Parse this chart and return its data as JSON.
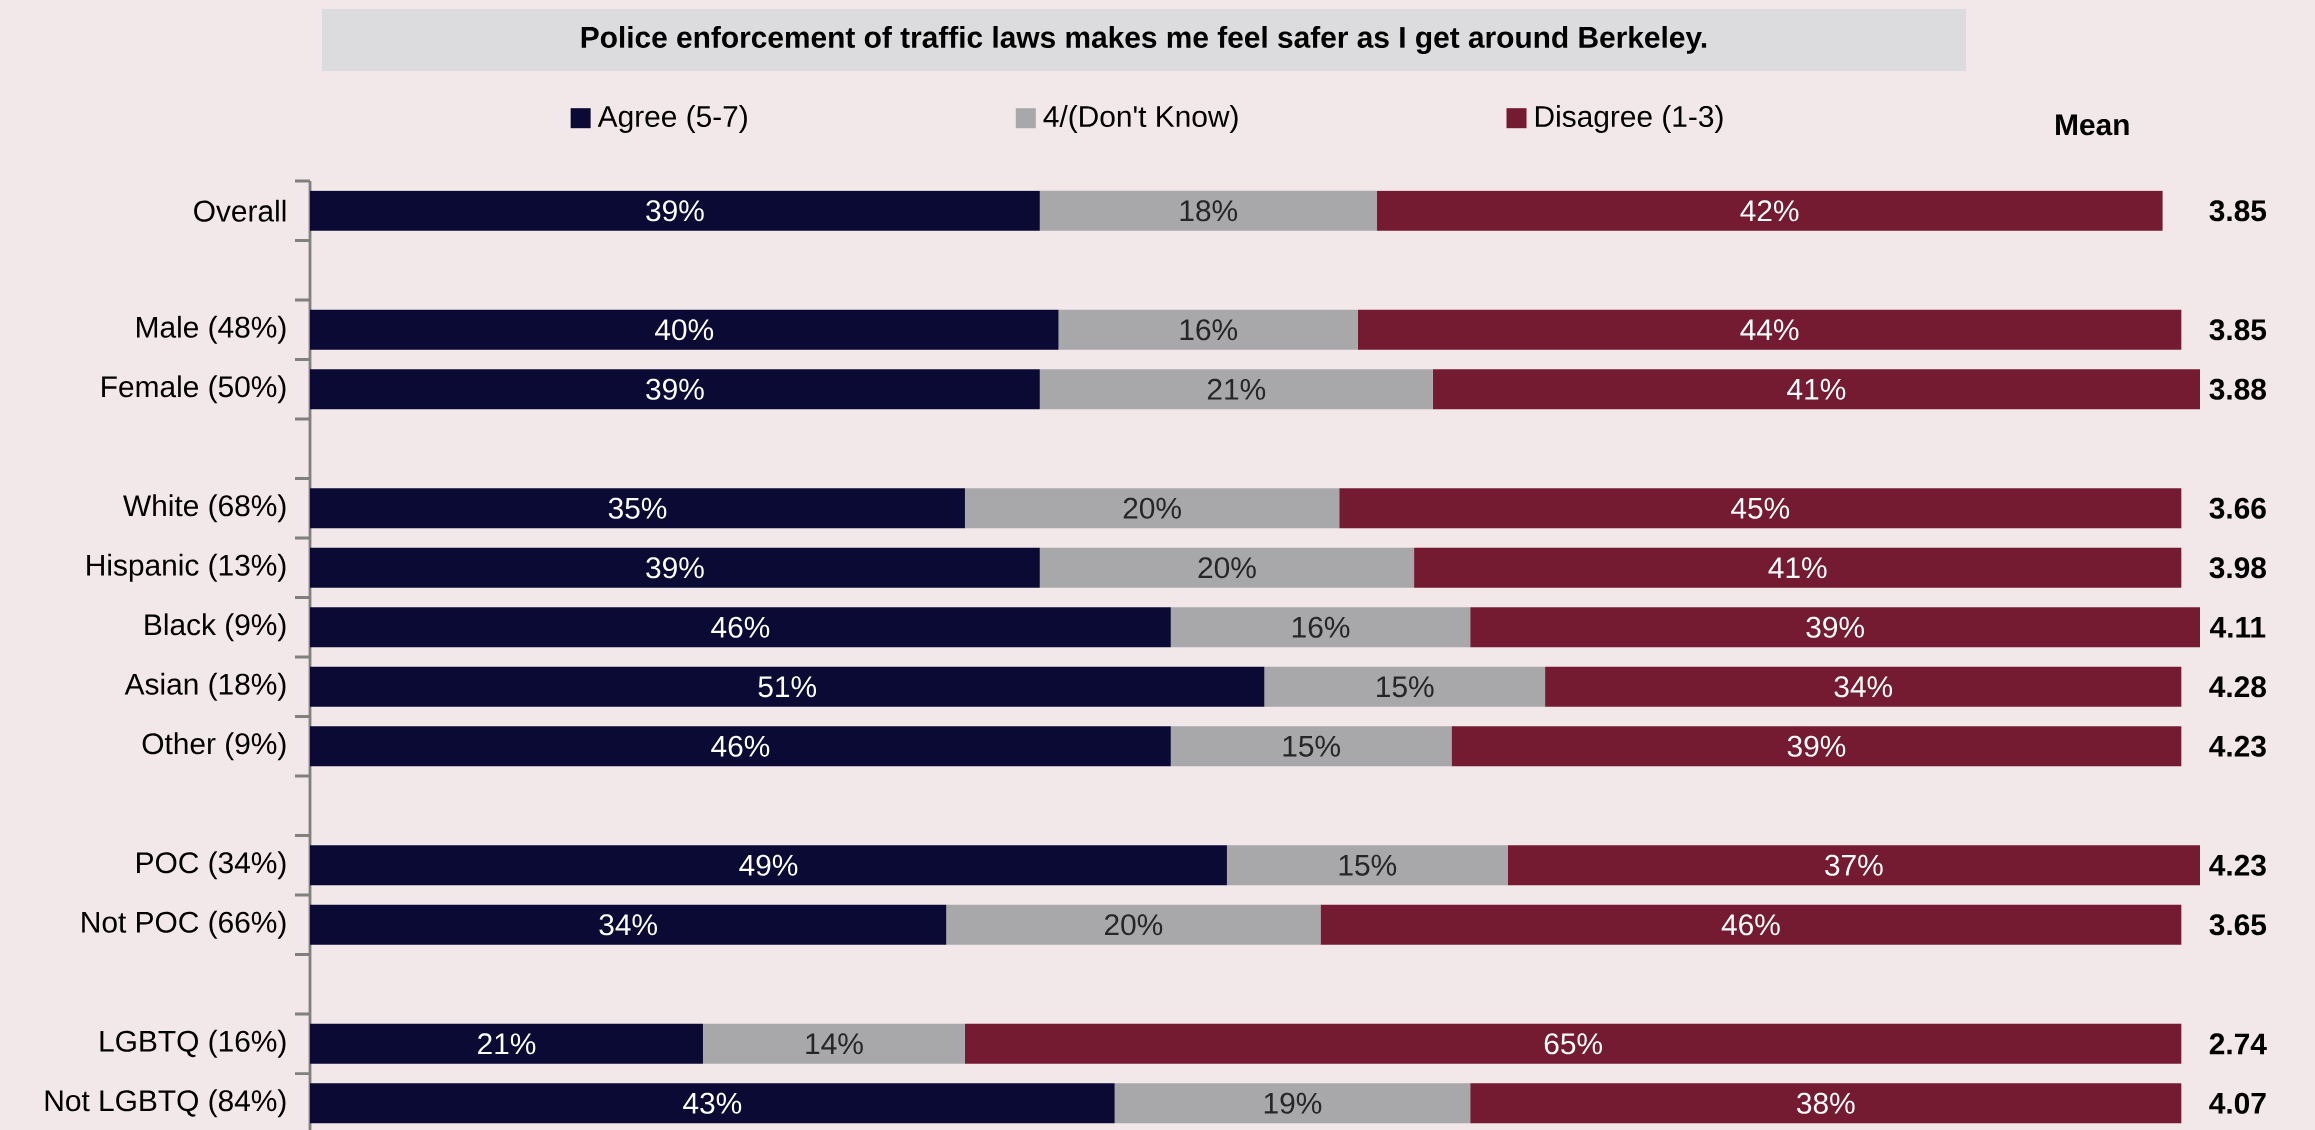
{
  "chart_data": {
    "type": "bar",
    "orientation": "horizontal",
    "stacked": true,
    "title": "Police enforcement of traffic laws makes me feel safer as I get around Berkeley.",
    "categories": [
      "Overall",
      null,
      "Male (48%)",
      "Female (50%)",
      null,
      "White (68%)",
      "Hispanic (13%)",
      "Black (9%)",
      "Asian (18%)",
      "Other (9%)",
      null,
      "POC (34%)",
      "Not POC (66%)",
      null,
      "LGBTQ (16%)",
      "Not LGBTQ (84%)"
    ],
    "series": [
      {
        "name": "Agree (5-7)",
        "color": "#0b0a35",
        "values": [
          39,
          null,
          40,
          39,
          null,
          35,
          39,
          46,
          51,
          46,
          null,
          49,
          34,
          null,
          21,
          43
        ],
        "value_labels": [
          "39%",
          null,
          "40%",
          "39%",
          null,
          "35%",
          "39%",
          "46%",
          "51%",
          "46%",
          null,
          "49%",
          "34%",
          null,
          "21%",
          "43%"
        ]
      },
      {
        "name": "4/(Don't Know)",
        "color": "#a8a8ab",
        "values": [
          18,
          null,
          16,
          21,
          null,
          20,
          20,
          16,
          15,
          15,
          null,
          15,
          20,
          null,
          14,
          19
        ],
        "value_labels": [
          "18%",
          null,
          "16%",
          "21%",
          null,
          "20%",
          "20%",
          "16%",
          "15%",
          "15%",
          null,
          "15%",
          "20%",
          null,
          "14%",
          "19%"
        ]
      },
      {
        "name": "Disagree (1-3)",
        "color": "#741b32",
        "values": [
          42,
          null,
          44,
          41,
          null,
          45,
          41,
          39,
          34,
          39,
          null,
          37,
          46,
          null,
          65,
          38
        ],
        "value_labels": [
          "42%",
          null,
          "44%",
          "41%",
          null,
          "45%",
          "41%",
          "39%",
          "34%",
          "39%",
          null,
          "37%",
          "46%",
          null,
          "65%",
          "38%"
        ]
      }
    ],
    "legend": "top",
    "annotations": [
      "Mean",
      "3.85",
      "3.85",
      "3.88",
      "3.66",
      "3.98",
      "4.11",
      "4.28",
      "4.23",
      "4.23",
      "3.65",
      "2.74",
      "4.07"
    ]
  }
}
